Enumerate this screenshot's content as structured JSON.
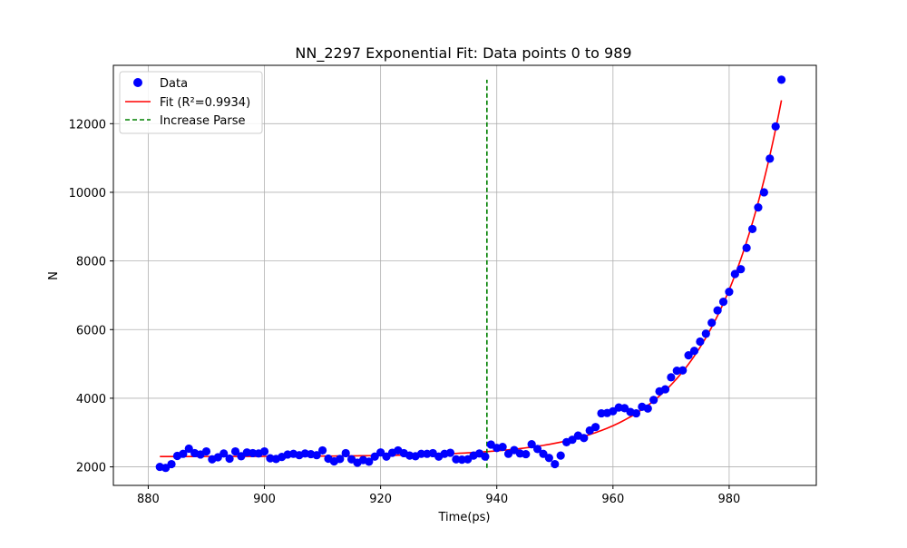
{
  "chart_data": {
    "type": "scatter",
    "title": "NN_2297 Exponential Fit: Data points 0 to 989",
    "xlabel": "Time(ps)",
    "ylabel": "N",
    "xlim": [
      874,
      995
    ],
    "ylim": [
      1460,
      13700
    ],
    "xticks": [
      880,
      900,
      920,
      940,
      960,
      980
    ],
    "yticks": [
      2000,
      4000,
      6000,
      8000,
      10000,
      12000
    ],
    "grid": true,
    "legend_position": "top-left",
    "colors": {
      "data": "#0000ff",
      "fit": "#ff0000",
      "parse": "#008000",
      "grid": "#b0b0b0"
    },
    "legend": [
      {
        "label": "Data",
        "kind": "marker",
        "color": "#0000ff"
      },
      {
        "label": "Fit (R²=0.9934)",
        "kind": "line",
        "color": "#ff0000"
      },
      {
        "label": "Increase Parse",
        "kind": "dashed-line",
        "color": "#008000"
      }
    ],
    "series": [
      {
        "name": "Data",
        "kind": "scatter",
        "x": [
          882,
          883,
          884,
          885,
          886,
          887,
          888,
          889,
          890,
          891,
          892,
          893,
          894,
          895,
          896,
          897,
          898,
          899,
          900,
          901,
          902,
          903,
          904,
          905,
          906,
          907,
          908,
          909,
          910,
          911,
          912,
          913,
          914,
          915,
          916,
          917,
          918,
          919,
          920,
          921,
          922,
          923,
          924,
          925,
          926,
          927,
          928,
          929,
          930,
          931,
          932,
          933,
          934,
          935,
          936,
          937,
          938,
          939,
          940,
          941,
          942,
          943,
          944,
          945,
          946,
          947,
          948,
          949,
          950,
          951,
          952,
          953,
          954,
          955,
          956,
          957,
          958,
          959,
          960,
          961,
          962,
          963,
          964,
          965,
          966,
          967,
          968,
          969,
          970,
          971,
          972,
          973,
          974,
          975,
          976,
          977,
          978,
          979,
          980,
          981,
          982,
          983,
          984,
          985,
          986,
          987,
          988,
          989
        ],
        "y": [
          2000,
          1970,
          2080,
          2320,
          2380,
          2530,
          2400,
          2360,
          2450,
          2220,
          2280,
          2390,
          2240,
          2450,
          2310,
          2420,
          2400,
          2390,
          2450,
          2250,
          2230,
          2290,
          2360,
          2380,
          2340,
          2390,
          2370,
          2340,
          2480,
          2240,
          2160,
          2230,
          2400,
          2220,
          2120,
          2200,
          2150,
          2300,
          2420,
          2300,
          2410,
          2480,
          2400,
          2330,
          2310,
          2380,
          2380,
          2400,
          2300,
          2380,
          2410,
          2220,
          2210,
          2220,
          2330,
          2390,
          2300,
          2650,
          2550,
          2580,
          2380,
          2490,
          2390,
          2370,
          2660,
          2520,
          2380,
          2260,
          2080,
          2330,
          2720,
          2790,
          2910,
          2840,
          3060,
          3160,
          3560,
          3570,
          3620,
          3730,
          3710,
          3600,
          3560,
          3750,
          3700,
          3950,
          4200,
          4260,
          4610,
          4800,
          4810,
          5250,
          5380,
          5650,
          5880,
          6200,
          6560,
          6810,
          7100,
          7620,
          7760,
          8380,
          8930,
          9560,
          10000,
          10980,
          11920,
          13280
        ]
      },
      {
        "name": "Fit (R²=0.9934)",
        "kind": "exponential-fit",
        "x_start": 882,
        "x_end": 989,
        "baseline": 2300,
        "amplitude": 10380,
        "rate": 0.08435
      },
      {
        "name": "Increase Parse",
        "kind": "vertical-line",
        "x": 938.3,
        "y_from": 1970,
        "y_to": 13280
      }
    ]
  }
}
